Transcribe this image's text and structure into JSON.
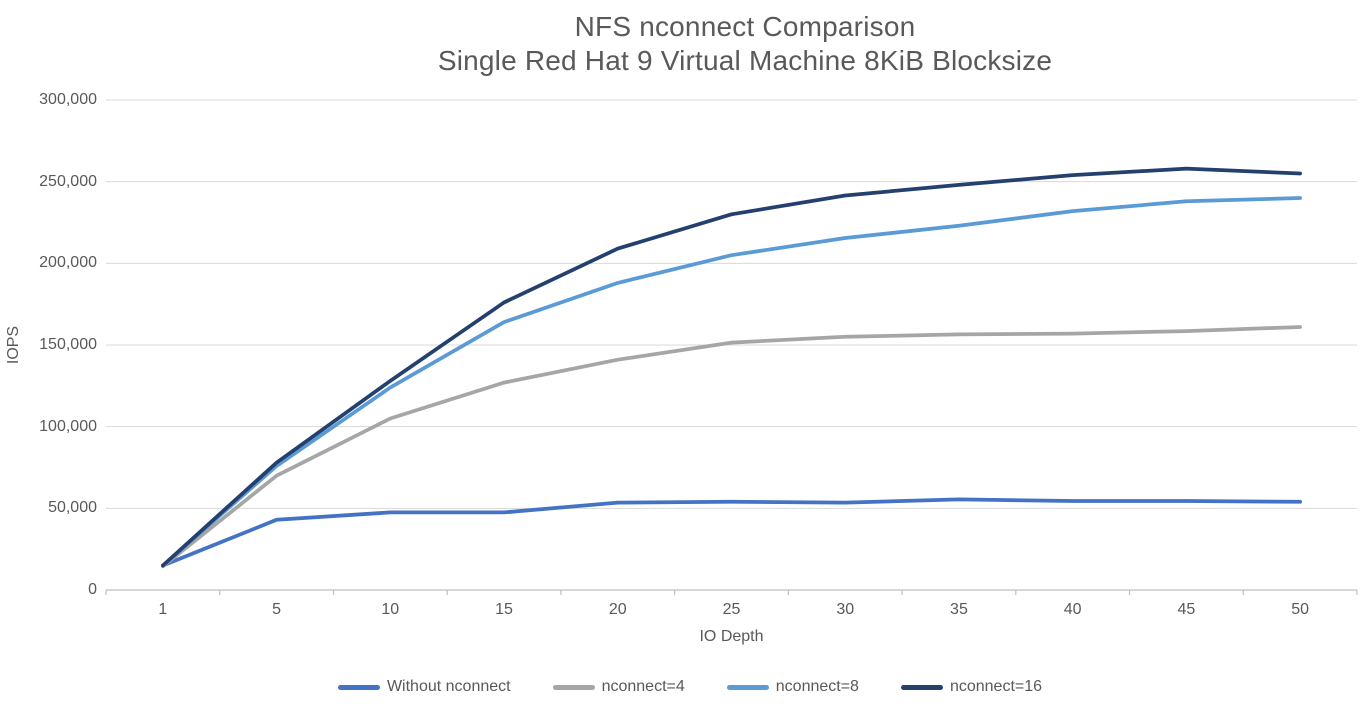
{
  "chart_data": {
    "type": "line",
    "title": "NFS nconnect Comparison",
    "subtitle": "Single Red Hat 9 Virtual Machine 8KiB Blocksize",
    "xlabel": "IO Depth",
    "ylabel": "IOPS",
    "categories": [
      1,
      5,
      10,
      15,
      20,
      25,
      30,
      35,
      40,
      45,
      50
    ],
    "x_tick_labels": [
      "1",
      "5",
      "10",
      "15",
      "20",
      "25",
      "30",
      "35",
      "40",
      "45",
      "50"
    ],
    "y_ticks": [
      0,
      50000,
      100000,
      150000,
      200000,
      250000,
      300000
    ],
    "y_tick_labels": [
      "0",
      "50,000",
      "100,000",
      "150,000",
      "200,000",
      "250,000",
      "300,000"
    ],
    "ylim": [
      0,
      300000
    ],
    "grid": "horizontal",
    "legend_position": "bottom",
    "series": [
      {
        "name": "Without nconnect",
        "color": "#4472C4",
        "values": [
          15000,
          43000,
          47500,
          47500,
          53500,
          54000,
          53500,
          55500,
          54500,
          54500,
          54000
        ]
      },
      {
        "name": "nconnect=4",
        "color": "#A6A6A6",
        "values": [
          14500,
          70000,
          105000,
          127000,
          141000,
          151500,
          155000,
          156500,
          157000,
          158500,
          161000
        ]
      },
      {
        "name": "nconnect=8",
        "color": "#5B9BD5",
        "values": [
          15000,
          76000,
          124000,
          164000,
          188000,
          205000,
          215500,
          223000,
          232000,
          238000,
          240000
        ]
      },
      {
        "name": "nconnect=16",
        "color": "#24406F",
        "values": [
          15000,
          78000,
          128000,
          176000,
          209000,
          230000,
          241500,
          248000,
          254000,
          258000,
          255000
        ]
      }
    ],
    "axis_colors": {
      "gridline": "#D9D9D9",
      "axis_line": "#BFBFBF",
      "tick_mark": "#BFBFBF"
    }
  }
}
